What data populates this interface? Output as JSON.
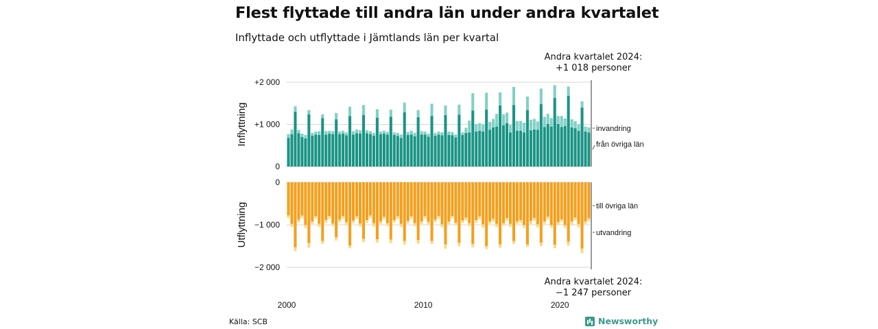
{
  "header": {
    "title": "Flest flyttade till andra län under andra kvartalet",
    "subtitle": "Inflyttade och utflyttade i Jämtlands län per kvartal"
  },
  "annotations": {
    "top_line1": "Andra kvartalet 2024:",
    "top_line2": "+1 018 personer",
    "bottom_line1": "Andra kvartalet 2024:",
    "bottom_line2": "−1 247 personer"
  },
  "footer": {
    "source": "Källa: SCB",
    "brand": "Newsworthy"
  },
  "chart_data": [
    {
      "type": "bar",
      "stacked": true,
      "ylabel": "Inflyttning",
      "ylim": [
        0,
        2000
      ],
      "y_ticks": [
        0,
        1000,
        2000
      ],
      "y_tick_labels": [
        "0",
        "+1 000",
        "+2 000"
      ],
      "x_start_quarter": "2000Q1",
      "x_ticks": [
        "2000",
        "2010",
        "2020"
      ],
      "grid": true,
      "series": [
        {
          "name": "från övriga län",
          "color": "#1a9485",
          "values": [
            680,
            770,
            1300,
            790,
            700,
            670,
            1240,
            730,
            760,
            750,
            1150,
            760,
            780,
            770,
            1120,
            770,
            780,
            740,
            1200,
            760,
            790,
            780,
            1220,
            790,
            770,
            730,
            1160,
            770,
            780,
            760,
            1180,
            750,
            730,
            680,
            1290,
            750,
            760,
            720,
            1170,
            760,
            760,
            710,
            1200,
            730,
            760,
            740,
            1220,
            750,
            740,
            690,
            1230,
            750,
            800,
            810,
            1330,
            830,
            850,
            830,
            1350,
            870,
            930,
            950,
            1450,
            980,
            1030,
            810,
            1460,
            850,
            850,
            810,
            1340,
            860,
            880,
            870,
            1480,
            940,
            1010,
            950,
            1630,
            1010,
            940,
            960,
            1680,
            930,
            910,
            850,
            1400,
            830,
            810
          ]
        },
        {
          "name": "invandring",
          "color": "#82d0c6",
          "values": [
            90,
            110,
            130,
            80,
            80,
            80,
            100,
            70,
            70,
            90,
            90,
            80,
            70,
            70,
            150,
            60,
            70,
            70,
            220,
            80,
            90,
            80,
            240,
            70,
            70,
            70,
            200,
            60,
            70,
            60,
            170,
            60,
            70,
            80,
            230,
            70,
            90,
            80,
            170,
            80,
            70,
            70,
            290,
            70,
            70,
            70,
            230,
            80,
            80,
            70,
            240,
            60,
            120,
            280,
            410,
            180,
            180,
            170,
            400,
            190,
            200,
            300,
            310,
            260,
            250,
            180,
            430,
            230,
            230,
            230,
            320,
            250,
            250,
            200,
            370,
            240,
            240,
            200,
            300,
            190,
            260,
            180,
            220,
            190,
            170,
            150,
            150,
            120,
            120
          ]
        }
      ]
    },
    {
      "type": "bar",
      "stacked": true,
      "ylabel": "Utflyttning",
      "ylim": [
        -2000,
        0
      ],
      "y_ticks": [
        0,
        -1000,
        -2000
      ],
      "y_tick_labels": [
        "0",
        "−1 000",
        "−2 000"
      ],
      "x_start_quarter": "2000Q1",
      "x_ticks": [
        "2000",
        "2010",
        "2020"
      ],
      "grid": true,
      "series": [
        {
          "name": "till övriga län",
          "color": "#f3a01e",
          "values": [
            -780,
            -980,
            -1530,
            -880,
            -780,
            -1000,
            -1430,
            -920,
            -800,
            -980,
            -1380,
            -890,
            -790,
            -970,
            -1290,
            -880,
            -790,
            -940,
            -1490,
            -900,
            -800,
            -970,
            -1330,
            -890,
            -780,
            -960,
            -1340,
            -920,
            -810,
            -960,
            -1350,
            -890,
            -800,
            -980,
            -1380,
            -910,
            -800,
            -960,
            -1360,
            -920,
            -790,
            -930,
            -1380,
            -880,
            -790,
            -990,
            -1460,
            -920,
            -790,
            -950,
            -1420,
            -900,
            -830,
            -960,
            -1450,
            -890,
            -800,
            -990,
            -1500,
            -920,
            -860,
            -980,
            -1460,
            -960,
            -840,
            -980,
            -1380,
            -920,
            -890,
            -1000,
            -1460,
            -910,
            -840,
            -990,
            -1420,
            -920,
            -810,
            -1000,
            -1470,
            -940,
            -870,
            -1000,
            -1400,
            -920,
            -830,
            -980,
            -1560,
            -920,
            -850
          ]
        },
        {
          "name": "utvandring",
          "color": "#fbd98a",
          "values": [
            -60,
            -70,
            -90,
            -60,
            -60,
            -70,
            -110,
            -60,
            -50,
            -70,
            -70,
            -60,
            -60,
            -60,
            -80,
            -60,
            -60,
            -70,
            -60,
            -60,
            -60,
            -70,
            -80,
            -60,
            -60,
            -80,
            -80,
            -60,
            -60,
            -70,
            -80,
            -60,
            -60,
            -70,
            -90,
            -60,
            -60,
            -70,
            -80,
            -60,
            -60,
            -70,
            -70,
            -60,
            -60,
            -70,
            -100,
            -60,
            -60,
            -60,
            -80,
            -60,
            -60,
            -70,
            -80,
            -60,
            -70,
            -80,
            -70,
            -60,
            -60,
            -70,
            -80,
            -60,
            -60,
            -70,
            -70,
            -60,
            -60,
            -70,
            -60,
            -70,
            -60,
            -70,
            -80,
            -60,
            -60,
            -70,
            -80,
            -60,
            -60,
            -70,
            -90,
            -70,
            -60,
            -80,
            -110,
            -60,
            -60
          ]
        }
      ]
    }
  ],
  "legend_labels": {
    "top_outer": "invandring",
    "top_inner": "från övriga län",
    "bottom_inner": "till övriga län",
    "bottom_outer": "utvandring"
  }
}
